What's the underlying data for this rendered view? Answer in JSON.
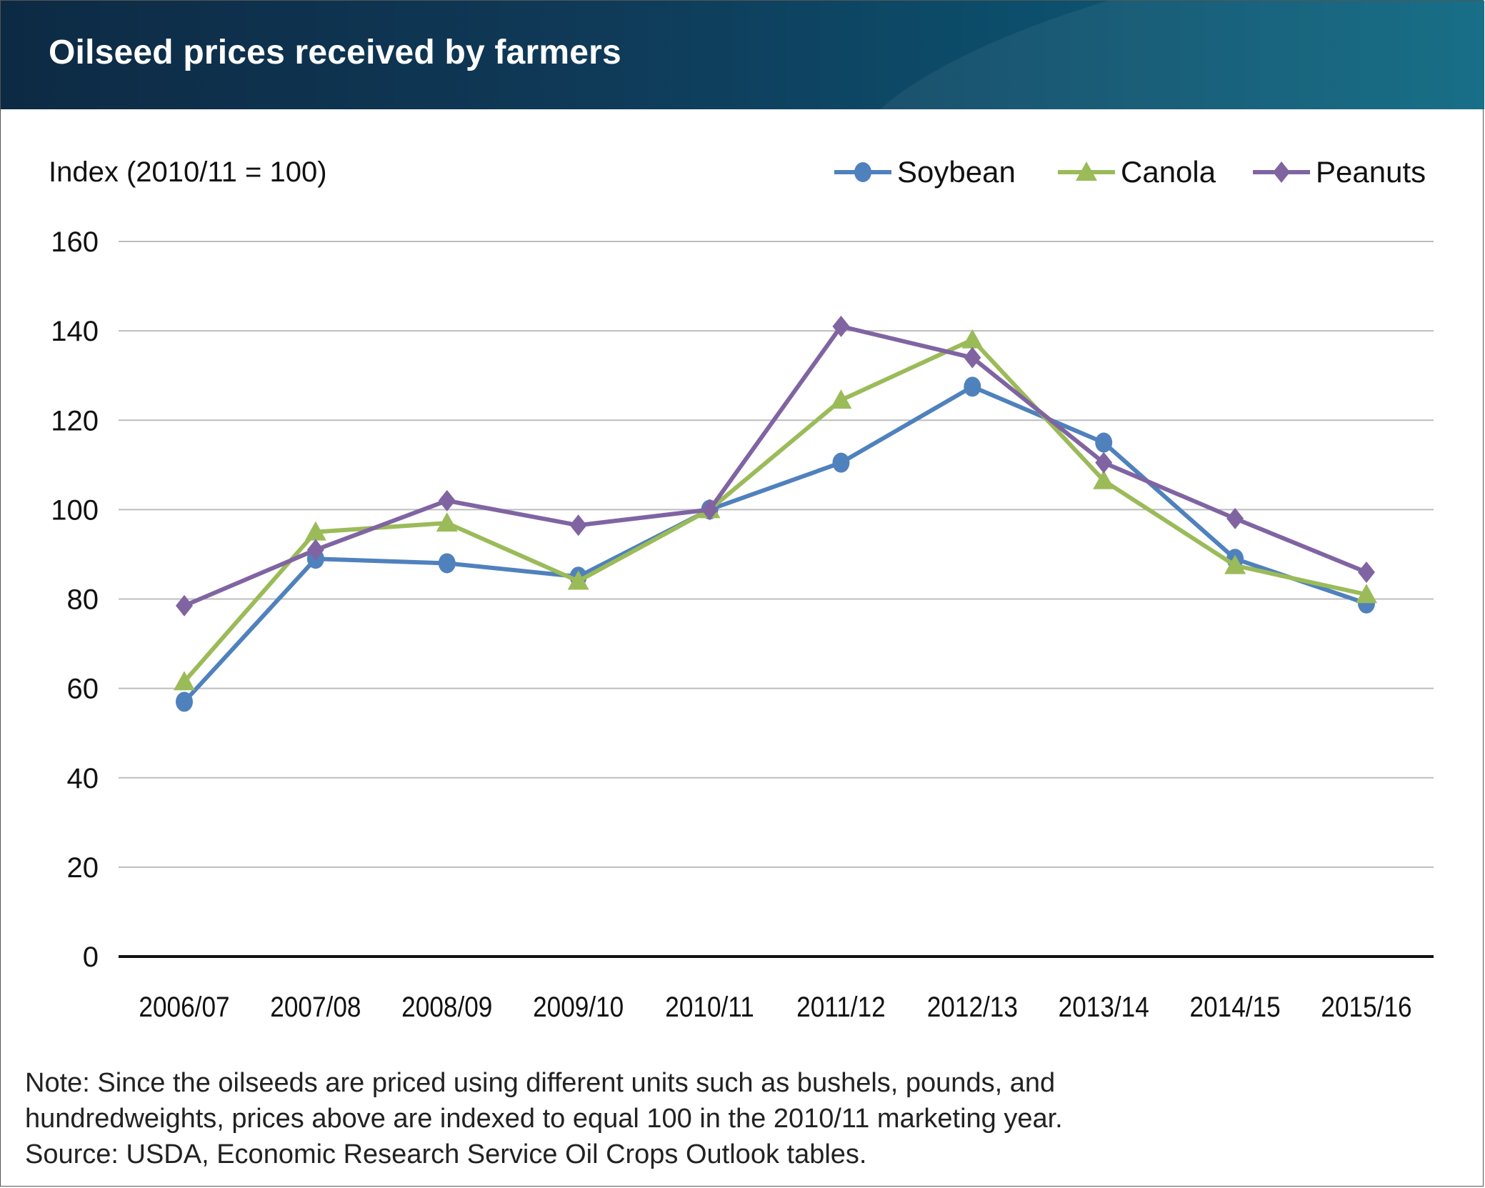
{
  "header": {
    "title": "Oilseed prices received by farmers"
  },
  "chart_data": {
    "type": "line",
    "title": "Oilseed prices received by farmers",
    "ylabel": "Index (2010/11 = 100)",
    "xlabel": "",
    "categories": [
      "2006/07",
      "2007/08",
      "2008/09",
      "2009/10",
      "2010/11",
      "2011/12",
      "2012/13",
      "2013/14",
      "2014/15",
      "2015/16"
    ],
    "ylim": [
      0,
      160
    ],
    "yticks": [
      "0",
      "20",
      "40",
      "60",
      "80",
      "100",
      "120",
      "140",
      "160"
    ],
    "grid": true,
    "legend_position": "top-right",
    "series": [
      {
        "name": "Soybean",
        "color": "#4f81bd",
        "marker": "circle",
        "values": [
          57,
          89,
          88,
          85,
          100,
          110.5,
          127.5,
          115,
          89,
          79
        ]
      },
      {
        "name": "Canola",
        "color": "#9bbb59",
        "marker": "triangle",
        "values": [
          61.5,
          95,
          97,
          84,
          100,
          124.5,
          138,
          106.5,
          87.5,
          81
        ]
      },
      {
        "name": "Peanuts",
        "color": "#8064a2",
        "marker": "diamond",
        "values": [
          78.5,
          91,
          102,
          96.5,
          100,
          141,
          134,
          110.5,
          98,
          86
        ]
      }
    ]
  },
  "footer": {
    "note_line1": "Note: Since the oilseeds are priced using different units such as bushels, pounds, and",
    "note_line2": "hundredweights, prices above are indexed to equal 100 in the 2010/11 marketing year.",
    "source": "Source: USDA, Economic Research Service Oil Crops Outlook tables."
  }
}
